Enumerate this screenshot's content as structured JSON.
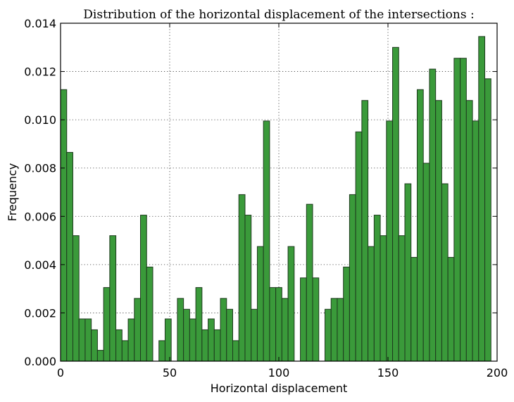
{
  "chart_data": {
    "type": "bar",
    "title": "Distribution of the horizontal displacement of the intersections :",
    "xlabel": "Horizontal displacement",
    "ylabel": "Frequency",
    "xlim": [
      0,
      200
    ],
    "ylim": [
      0,
      0.014
    ],
    "x_ticks": [
      0,
      50,
      100,
      150,
      200
    ],
    "y_ticks": [
      "0.000",
      "0.002",
      "0.004",
      "0.006",
      "0.008",
      "0.010",
      "0.012",
      "0.014"
    ],
    "grid": true,
    "bin_width": 2.8169,
    "bar_color": "#3a9a3a",
    "bins_start": [
      0,
      2.817,
      5.634,
      8.451,
      11.268,
      14.085,
      16.901,
      19.718,
      22.535,
      25.352,
      28.169,
      30.986,
      33.803,
      36.62,
      39.437,
      42.254,
      45.07,
      47.887,
      50.704,
      53.521,
      56.338,
      59.155,
      61.972,
      64.789,
      67.606,
      70.423,
      73.239,
      76.056,
      78.873,
      81.69,
      84.507,
      87.324,
      90.141,
      92.958,
      95.775,
      98.592,
      101.408,
      104.225,
      107.042,
      109.859,
      112.676,
      115.493,
      118.31,
      121.127,
      123.944,
      126.761,
      129.577,
      132.394,
      135.211,
      138.028,
      140.845,
      143.662,
      146.479,
      149.296,
      152.113,
      154.93,
      157.746,
      160.563,
      163.38,
      166.197,
      169.014,
      171.831,
      174.648,
      177.465,
      180.282,
      183.099,
      185.915,
      188.732,
      191.549,
      194.366,
      197.183
    ],
    "values": [
      0.01125,
      0.00865,
      0.0052,
      0.00175,
      0.00175,
      0.0013,
      0.00045,
      0.00305,
      0.0052,
      0.0013,
      0.00085,
      0.00175,
      0.0026,
      0.00605,
      0.0039,
      0.0,
      0.00085,
      0.00175,
      0.0,
      0.0026,
      0.00215,
      0.00175,
      0.00305,
      0.0013,
      0.00175,
      0.0013,
      0.0026,
      0.00215,
      0.00085,
      0.0069,
      0.00605,
      0.00215,
      0.00475,
      0.00995,
      0.00305,
      0.00305,
      0.0026,
      0.00475,
      0.0,
      0.00345,
      0.0065,
      0.00345,
      0.0,
      0.00215,
      0.0026,
      0.0026,
      0.0039,
      0.0069,
      0.0095,
      0.0108,
      0.00475,
      0.00605,
      0.0052,
      0.00995,
      0.013,
      0.0052,
      0.00735,
      0.0043,
      0.01125,
      0.0082,
      0.0121,
      0.0108,
      0.00735,
      0.0043,
      0.01255,
      0.01255,
      0.0108,
      0.00995,
      0.01345,
      0.0117,
      0.0
    ]
  }
}
